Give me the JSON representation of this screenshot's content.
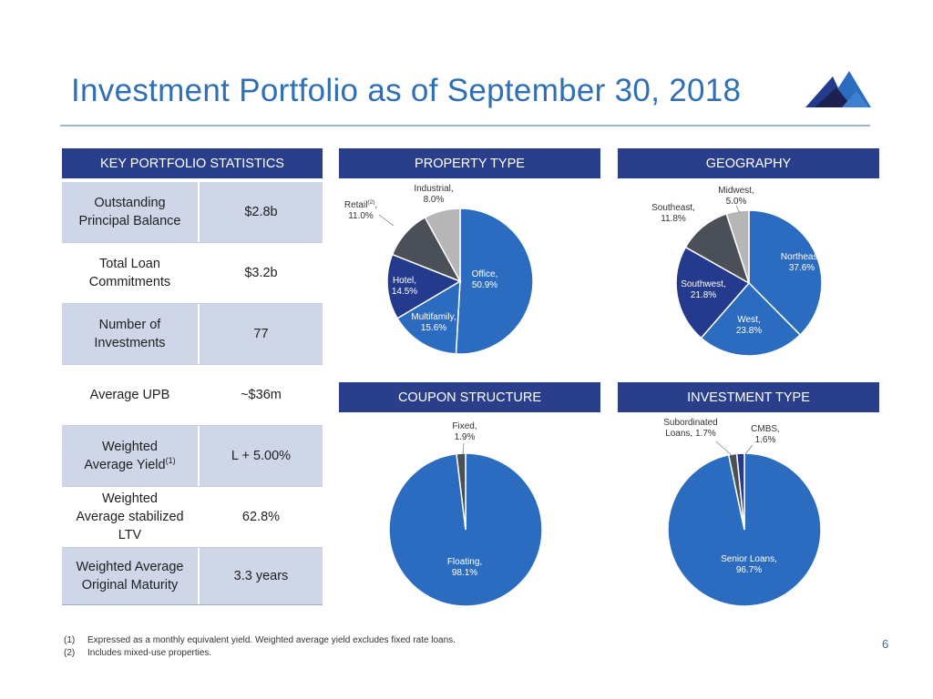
{
  "title": "Investment Portfolio as of September 30, 2018",
  "stats": {
    "header": "KEY PORTFOLIO STATISTICS",
    "rows": [
      {
        "label_lines": [
          "Outstanding",
          "Principal Balance"
        ],
        "value": "$2.8b"
      },
      {
        "label_lines": [
          "Total Loan",
          "Commitments"
        ],
        "value": "$3.2b"
      },
      {
        "label_lines": [
          "Number of",
          "Investments"
        ],
        "value": "77"
      },
      {
        "label_lines": [
          "Average UPB"
        ],
        "value": "~$36m"
      },
      {
        "label_lines": [
          "Weighted",
          "Average Yield"
        ],
        "label_sup": "(1)",
        "value": "L + 5.00%"
      },
      {
        "label_lines": [
          "Weighted",
          "Average stabilized",
          "LTV"
        ],
        "value": "62.8%"
      },
      {
        "label_lines": [
          "Weighted Average",
          "Original Maturity"
        ],
        "value": "3.3 years"
      }
    ]
  },
  "colors": {
    "header_bg": "#2a3f8c",
    "title": "#2f6fb5",
    "row_shade": "#cfd6e8",
    "slice_blue": "#2b6cc0",
    "slice_navy": "#243a8c",
    "slice_dark_gray": "#4a4f58",
    "slice_light_gray": "#b6b6b6"
  },
  "chart_data": [
    {
      "id": "property",
      "type": "pie",
      "title": "PROPERTY TYPE",
      "slices": [
        {
          "label": "Office,",
          "value": 50.9,
          "value_label": "50.9%",
          "color": "#2b6cc0"
        },
        {
          "label": "Multifamily,",
          "value": 15.6,
          "value_label": "15.6%",
          "color": "#2b6cc0"
        },
        {
          "label": "Hotel,",
          "value": 14.5,
          "value_label": "14.5%",
          "color": "#243a8c"
        },
        {
          "label": "Retail",
          "label_sup": "(2)",
          "label_suffix": ",",
          "value": 11.0,
          "value_label": "11.0%",
          "color": "#4a4f58"
        },
        {
          "label": "Industrial,",
          "value": 8.0,
          "value_label": "8.0%",
          "color": "#b6b6b6"
        }
      ]
    },
    {
      "id": "geography",
      "type": "pie",
      "title": "GEOGRAPHY",
      "slices": [
        {
          "label": "Northeast,",
          "value": 37.6,
          "value_label": "37.6%",
          "color": "#2b6cc0"
        },
        {
          "label": "West,",
          "value": 23.8,
          "value_label": "23.8%",
          "color": "#2b6cc0"
        },
        {
          "label": "Southwest,",
          "value": 21.8,
          "value_label": "21.8%",
          "color": "#243a8c"
        },
        {
          "label": "Southeast,",
          "value": 11.8,
          "value_label": "11.8%",
          "color": "#4a4f58"
        },
        {
          "label": "Midwest,",
          "value": 5.0,
          "value_label": "5.0%",
          "color": "#b6b6b6"
        }
      ]
    },
    {
      "id": "coupon",
      "type": "pie",
      "title": "COUPON STRUCTURE",
      "slices": [
        {
          "label": "Floating,",
          "value": 98.1,
          "value_label": "98.1%",
          "color": "#2b6cc0"
        },
        {
          "label": "Fixed,",
          "value": 1.9,
          "value_label": "1.9%",
          "color": "#4a4f58"
        }
      ]
    },
    {
      "id": "investment",
      "type": "pie",
      "title": "INVESTMENT TYPE",
      "slices": [
        {
          "label": "Senior Loans,",
          "value": 96.7,
          "value_label": "96.7%",
          "color": "#2b6cc0"
        },
        {
          "label": "Subordinated Loans, 1.7%",
          "label_lines": [
            "Subordinated",
            "Loans, 1.7%"
          ],
          "value": 1.7,
          "value_label": "",
          "color": "#4a4f58"
        },
        {
          "label": "CMBS,",
          "value": 1.6,
          "value_label": "1.6%",
          "color": "#243a8c"
        }
      ]
    }
  ],
  "footnotes": [
    {
      "num": "(1)",
      "text": "Expressed as a monthly equivalent yield. Weighted average yield excludes fixed rate loans."
    },
    {
      "num": "(2)",
      "text": "Includes mixed-use properties."
    }
  ],
  "page_number": "6"
}
